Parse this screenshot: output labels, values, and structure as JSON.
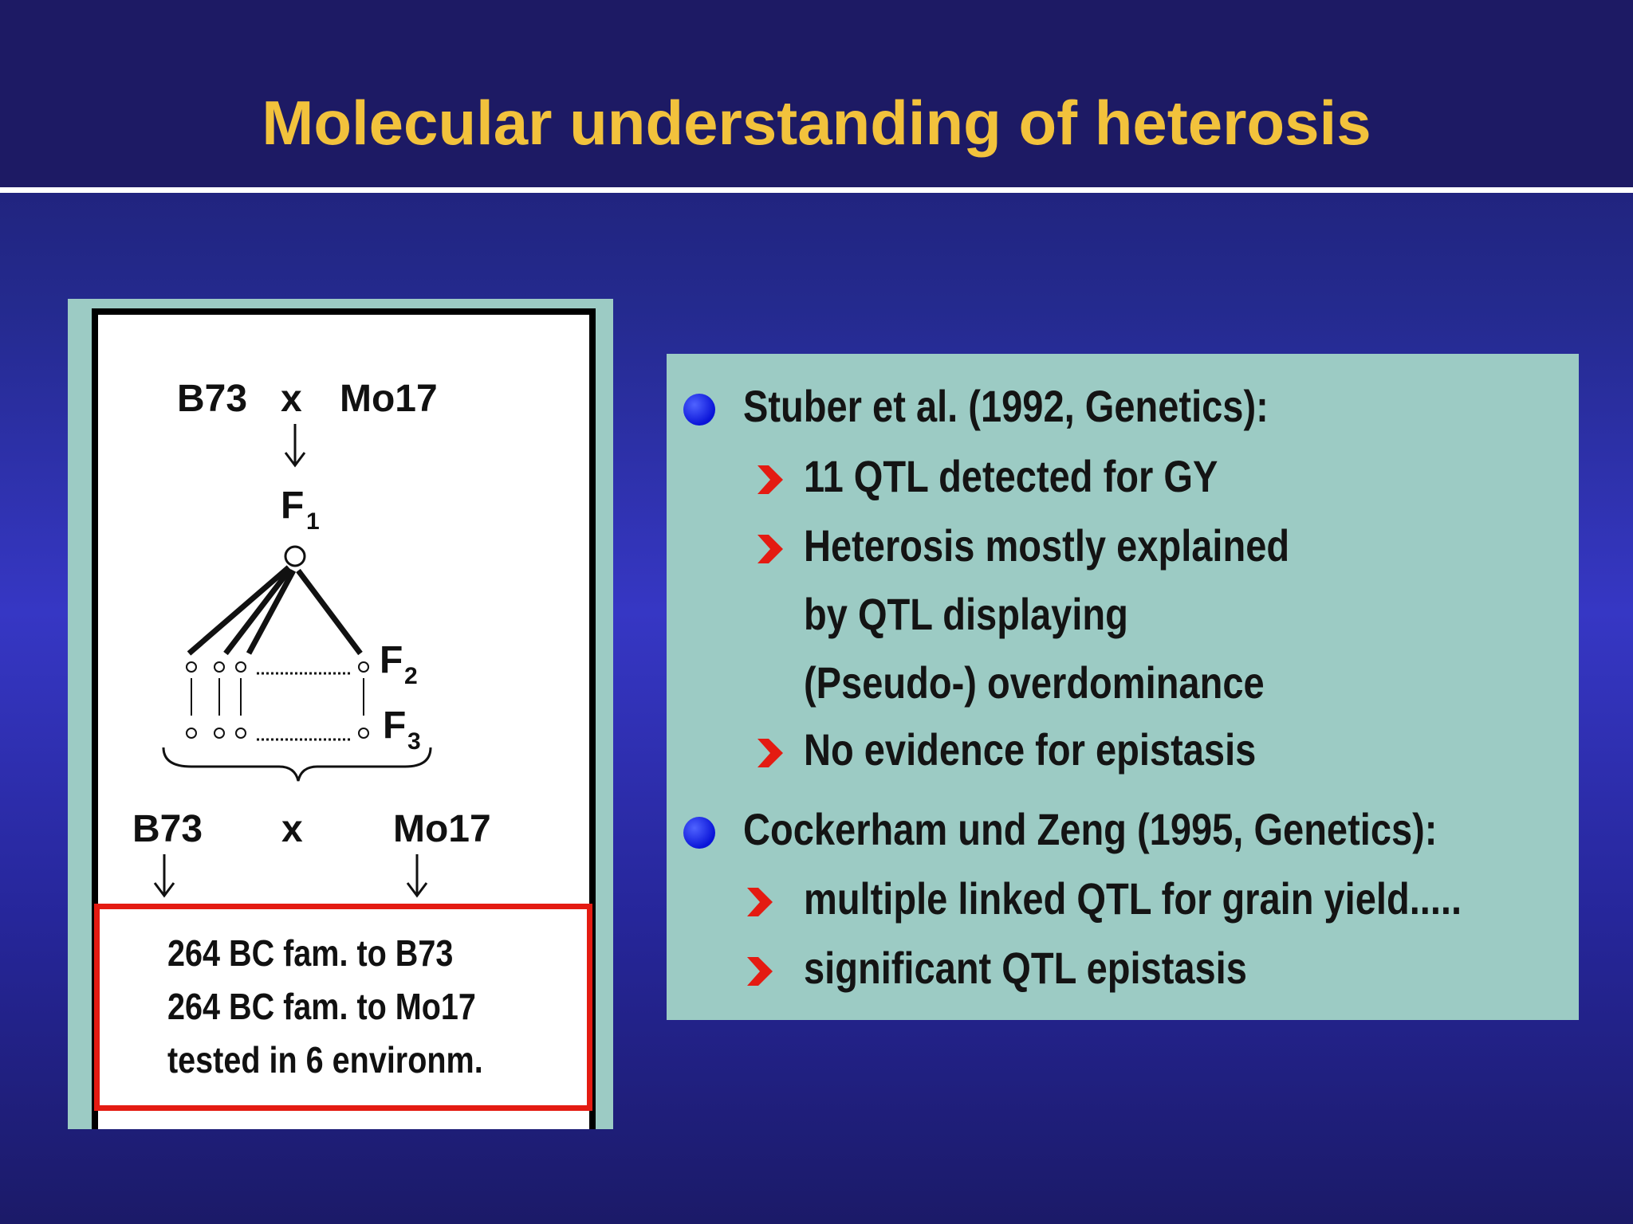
{
  "slide": {
    "title": "Molecular understanding of heterosis"
  },
  "diagram": {
    "top_parent_left": "B73",
    "top_cross": "x",
    "top_parent_right": "Mo17",
    "f1_label": "F",
    "f1_sub": "1",
    "f2_label": "F",
    "f2_sub": "2",
    "f3_label": "F",
    "f3_sub": "3",
    "bottom_parent_left": "B73",
    "bottom_cross": "x",
    "bottom_parent_right": "Mo17",
    "result_lines": [
      "264 BC fam. to B73",
      "264 BC fam. to Mo17",
      "tested in 6 environm."
    ]
  },
  "findings": {
    "studies": [
      {
        "heading": "Stuber et al. (1992, Genetics):",
        "points": [
          [
            "11 QTL detected for GY"
          ],
          [
            "Heterosis mostly explained",
            "by QTL displaying",
            "(Pseudo-) overdominance"
          ],
          [
            "No evidence for epistasis"
          ]
        ]
      },
      {
        "heading": "Cockerham und Zeng (1995, Genetics):",
        "points": [
          [
            "multiple linked QTL for grain yield....."
          ],
          [
            "significant QTL epistasis"
          ]
        ]
      }
    ]
  },
  "colors": {
    "title": "#f2c23c",
    "header_bg": "#1d1a64",
    "panel_bg": "#9ccbc4",
    "bullet": "#0a14d8",
    "arrow": "#e41b12",
    "result_border": "#e41b12"
  },
  "icons": {
    "bullet": "blue-dot",
    "sub_bullet": "red-chevron"
  }
}
